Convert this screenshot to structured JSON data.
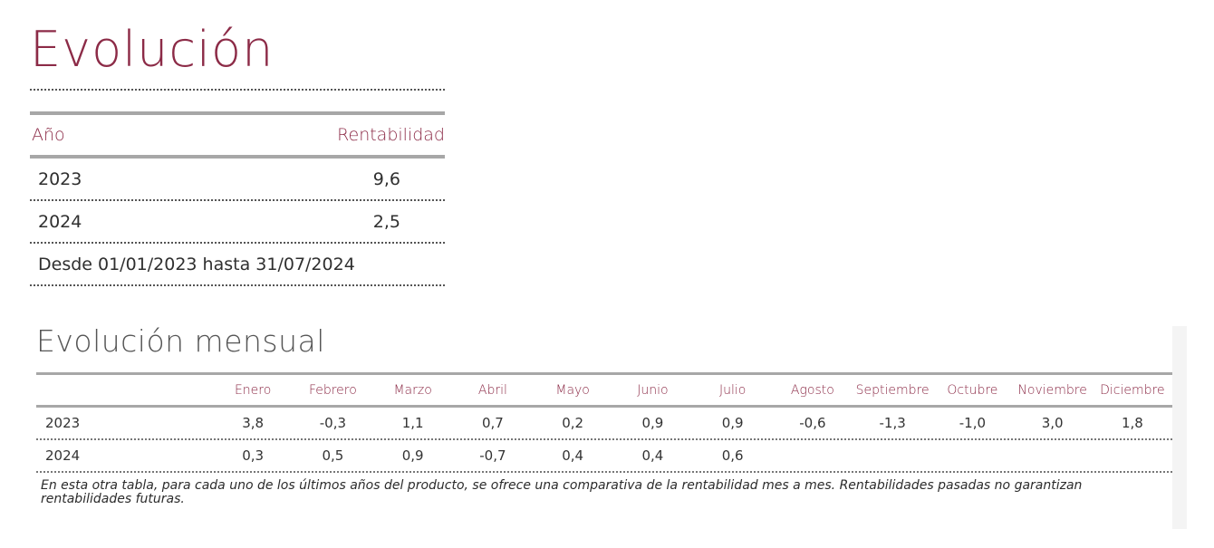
{
  "section1": {
    "title": "Evolución",
    "header": {
      "year": "Año",
      "rentabilidad": "Rentabilidad"
    },
    "rows": [
      {
        "year": "2023",
        "value": "9,6"
      },
      {
        "year": "2024",
        "value": "2,5"
      }
    ],
    "period": "Desde 01/01/2023 hasta 31/07/2024"
  },
  "section2": {
    "title": "Evolución mensual",
    "months": [
      "Enero",
      "Febrero",
      "Marzo",
      "Abril",
      "Mayo",
      "Junio",
      "Julio",
      "Agosto",
      "Septiembre",
      "Octubre",
      "Noviembre",
      "Diciembre"
    ],
    "rows": [
      {
        "year": "2023",
        "values": [
          "3,8",
          "-0,3",
          "1,1",
          "0,7",
          "0,2",
          "0,9",
          "0,9",
          "-0,6",
          "-1,3",
          "-1,0",
          "3,0",
          "1,8"
        ]
      },
      {
        "year": "2024",
        "values": [
          "0,3",
          "0,5",
          "0,9",
          "-0,7",
          "0,4",
          "0,4",
          "0,6",
          "",
          "",
          "",
          "",
          ""
        ]
      }
    ],
    "footnote": "En esta otra tabla, para cada uno de los últimos años del producto, se ofrece una comparativa de la rentabilidad mes a mes. Rentabilidades pasadas no garantizan rentabilidades futuras."
  },
  "colors": {
    "accent": "#8c2b47",
    "rule": "#a7a7a7",
    "text": "#2b2b2b"
  }
}
